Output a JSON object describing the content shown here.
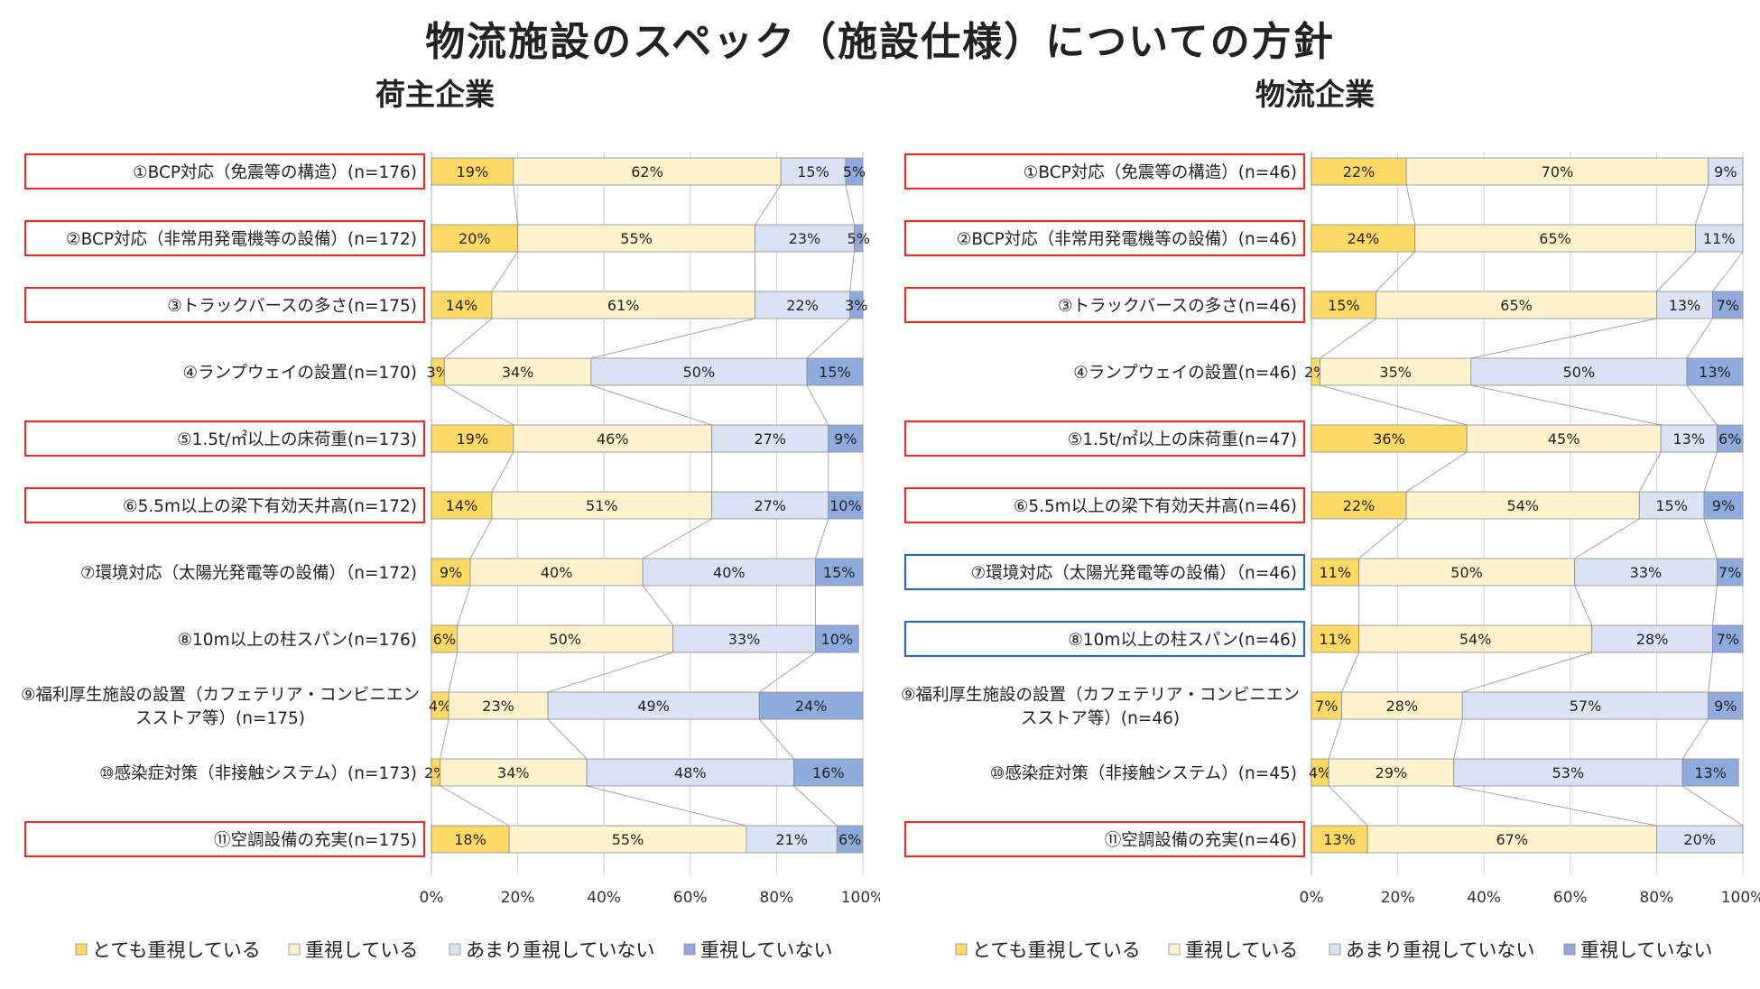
{
  "title": "物流施設のスペック（施設仕様）についての方針",
  "colors": {
    "very": "#ffd966",
    "important": "#fff2cc",
    "not_much": "#dae3f3",
    "not": "#8faadc"
  },
  "chart_data": [
    {
      "type": "bar",
      "orientation": "horizontal",
      "stacked": true,
      "percent": true,
      "title": "荷主企業",
      "categories": [
        "①BCP対応（免震等の構造）(n=176)",
        "②BCP対応（非常用発電機等の設備）(n=172)",
        "③トラックバースの多さ(n=175)",
        "④ランプウェイの設置(n=170)",
        "⑤1.5t/㎡以上の床荷重(n=173)",
        "⑥5.5m以上の梁下有効天井高(n=172)",
        "⑦環境対応（太陽光発電等の設備）（n=172)",
        "⑧10m以上の柱スパン(n=176)",
        "⑨福利厚生施設の設置（カフェテリア・コンビニエンスストア等）(n=175)",
        "⑩感染症対策（非接触システム）(n=173)",
        "⑪空調設備の充実(n=175)"
      ],
      "highlight": [
        "red",
        "red",
        "red",
        "none",
        "red",
        "red",
        "none",
        "none",
        "none",
        "none",
        "red"
      ],
      "series": [
        {
          "name": "とても重視している",
          "values": [
            19,
            20,
            14,
            3,
            19,
            14,
            9,
            6,
            4,
            2,
            18
          ]
        },
        {
          "name": "重視している",
          "values": [
            62,
            55,
            61,
            34,
            46,
            51,
            40,
            50,
            23,
            34,
            55
          ]
        },
        {
          "name": "あまり重視していない",
          "values": [
            15,
            23,
            22,
            50,
            27,
            27,
            40,
            33,
            49,
            48,
            21
          ]
        },
        {
          "name": "重視していない",
          "values": [
            5,
            5,
            3,
            15,
            9,
            10,
            15,
            10,
            24,
            16,
            6
          ]
        }
      ],
      "xticks": [
        "0%",
        "20%",
        "40%",
        "60%",
        "80%",
        "100%"
      ],
      "xlim": [
        0,
        100
      ]
    },
    {
      "type": "bar",
      "orientation": "horizontal",
      "stacked": true,
      "percent": true,
      "title": "物流企業",
      "categories": [
        "①BCP対応（免震等の構造）(n=46)",
        "②BCP対応（非常用発電機等の設備）(n=46)",
        "③トラックバースの多さ(n=46)",
        "④ランプウェイの設置(n=46)",
        "⑤1.5t/㎡以上の床荷重(n=47)",
        "⑥5.5m以上の梁下有効天井高(n=46)",
        "⑦環境対応（太陽光発電等の設備）（n=46)",
        "⑧10m以上の柱スパン(n=46)",
        "⑨福利厚生施設の設置（カフェテリア・コンビニエンスストア等）(n=46)",
        "⑩感染症対策（非接触システム）(n=45)",
        "⑪空調設備の充実(n=46)"
      ],
      "highlight": [
        "red",
        "red",
        "red",
        "none",
        "red",
        "red",
        "blue",
        "blue",
        "none",
        "none",
        "red"
      ],
      "series": [
        {
          "name": "とても重視している",
          "values": [
            22,
            24,
            15,
            2,
            36,
            22,
            11,
            11,
            7,
            4,
            13
          ]
        },
        {
          "name": "重視している",
          "values": [
            70,
            65,
            65,
            35,
            45,
            54,
            50,
            54,
            28,
            29,
            67
          ]
        },
        {
          "name": "あまり重視していない",
          "values": [
            9,
            11,
            13,
            50,
            13,
            15,
            33,
            28,
            57,
            53,
            20
          ]
        },
        {
          "name": "重視していない",
          "values": [
            0,
            0,
            7,
            13,
            6,
            9,
            7,
            7,
            9,
            13,
            0
          ]
        }
      ],
      "xticks": [
        "0%",
        "20%",
        "40%",
        "60%",
        "80%",
        "100%"
      ],
      "xlim": [
        0,
        100
      ]
    }
  ]
}
